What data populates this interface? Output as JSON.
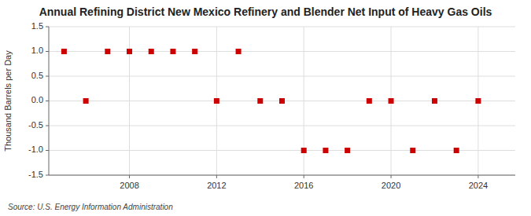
{
  "chart_data": {
    "type": "scatter",
    "title": "Annual Refining District New Mexico Refinery and Blender Net Input of Heavy Gas Oils",
    "ylabel": "Thousand Barrels per Day",
    "source": "Source: U.S. Energy Information Administration",
    "x": [
      2005,
      2006,
      2007,
      2008,
      2009,
      2010,
      2011,
      2012,
      2013,
      2014,
      2015,
      2016,
      2017,
      2018,
      2019,
      2020,
      2021,
      2022,
      2023,
      2024
    ],
    "values": [
      1,
      0,
      1,
      1,
      1,
      1,
      1,
      0,
      1,
      0,
      0,
      -1,
      -1,
      -1,
      0,
      0,
      -1,
      0,
      -1,
      0
    ],
    "color": "#cc0000",
    "marker": "square",
    "xlim": [
      2004.3,
      2025.7
    ],
    "ylim": [
      -1.5,
      1.5
    ],
    "xticks": [
      2008,
      2012,
      2016,
      2020,
      2024
    ],
    "yticks": [
      -1.5,
      {
        "value": -1,
        "label": "-1.0"
      },
      -0.5,
      {
        "value": 0,
        "label": "0.0"
      },
      0.5,
      {
        "value": 1,
        "label": "1.0"
      },
      1.5
    ],
    "grid": true
  }
}
